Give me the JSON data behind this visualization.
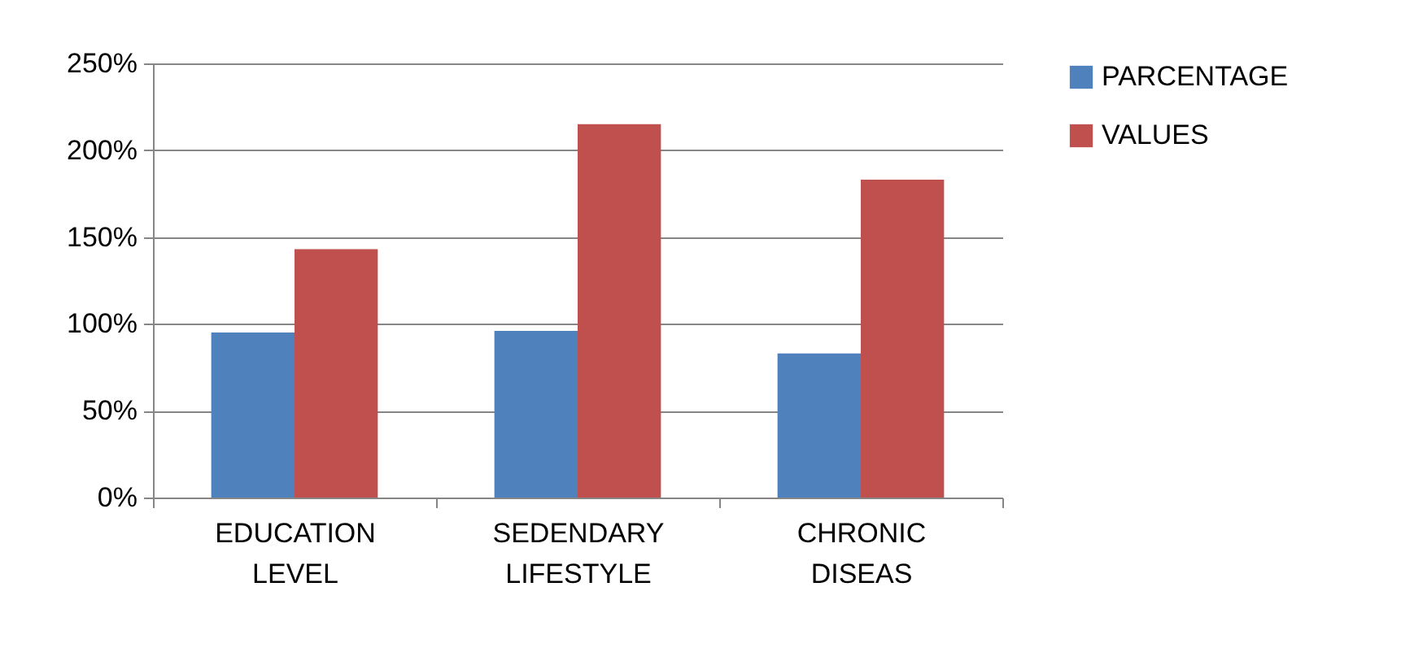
{
  "chart_data": {
    "type": "bar",
    "categories": [
      "EDUCATION LEVEL",
      "SEDENDARY LIFESTYLE",
      "CHRONIC DISEAS"
    ],
    "series": [
      {
        "name": "PARCENTAGE",
        "color": "#4f81bd",
        "values": [
          95,
          96,
          83
        ]
      },
      {
        "name": "VALUES",
        "color": "#c0504d",
        "values": [
          143,
          215,
          183
        ]
      }
    ],
    "ylim": [
      0,
      250
    ],
    "yticks": [
      {
        "value": 0,
        "label": "0%"
      },
      {
        "value": 50,
        "label": "50%"
      },
      {
        "value": 100,
        "label": "100%"
      },
      {
        "value": 150,
        "label": "150%"
      },
      {
        "value": 200,
        "label": "200%"
      },
      {
        "value": 250,
        "label": "250%"
      }
    ],
    "grid": "y",
    "legend": "right"
  }
}
